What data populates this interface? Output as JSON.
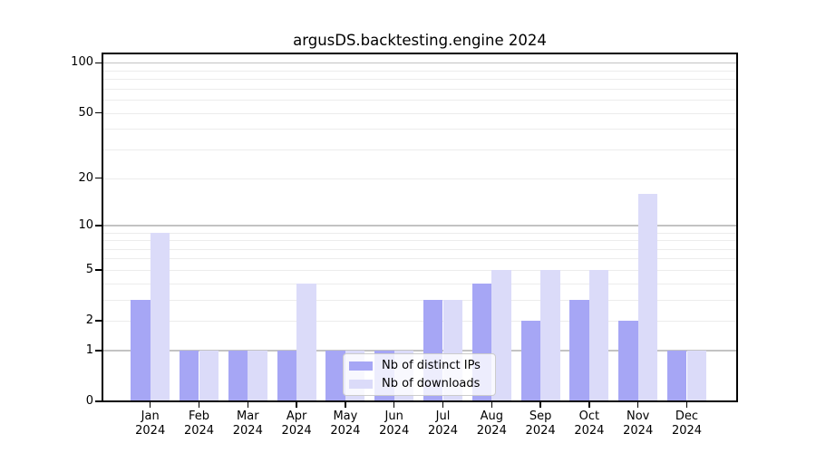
{
  "chart_data": {
    "type": "bar",
    "title": "argusDS.backtesting.engine 2024",
    "yscale": "log1p",
    "ylim": [
      0,
      112
    ],
    "yticks": [
      0,
      1,
      2,
      5,
      10,
      20,
      50,
      100
    ],
    "gridlines": {
      "major": [
        1,
        10,
        100
      ],
      "minor": [
        2,
        3,
        4,
        5,
        6,
        7,
        8,
        9,
        20,
        30,
        40,
        50,
        60,
        70,
        80,
        90
      ]
    },
    "categories": [
      {
        "month": "Jan",
        "year": "2024"
      },
      {
        "month": "Feb",
        "year": "2024"
      },
      {
        "month": "Mar",
        "year": "2024"
      },
      {
        "month": "Apr",
        "year": "2024"
      },
      {
        "month": "May",
        "year": "2024"
      },
      {
        "month": "Jun",
        "year": "2024"
      },
      {
        "month": "Jul",
        "year": "2024"
      },
      {
        "month": "Aug",
        "year": "2024"
      },
      {
        "month": "Sep",
        "year": "2024"
      },
      {
        "month": "Oct",
        "year": "2024"
      },
      {
        "month": "Nov",
        "year": "2024"
      },
      {
        "month": "Dec",
        "year": "2024"
      }
    ],
    "series": [
      {
        "name": "Nb of distinct IPs",
        "color": "#a6a6f5",
        "values": [
          3,
          1,
          1,
          1,
          1,
          1,
          3,
          4,
          2,
          3,
          2,
          1
        ]
      },
      {
        "name": "Nb of downloads",
        "color": "#dbdbf9",
        "values": [
          9,
          1,
          1,
          4,
          1,
          1,
          3,
          5,
          5,
          5,
          16,
          1
        ]
      }
    ],
    "legend": {
      "position": "inside-bottom-center",
      "background": "#ffffff",
      "border_color": "#cccccc"
    },
    "colors": {
      "spine": "#000000",
      "major_grid": "#c3c3c3",
      "minor_grid": "#ececec",
      "text": "#000000",
      "background": "#ffffff"
    }
  }
}
